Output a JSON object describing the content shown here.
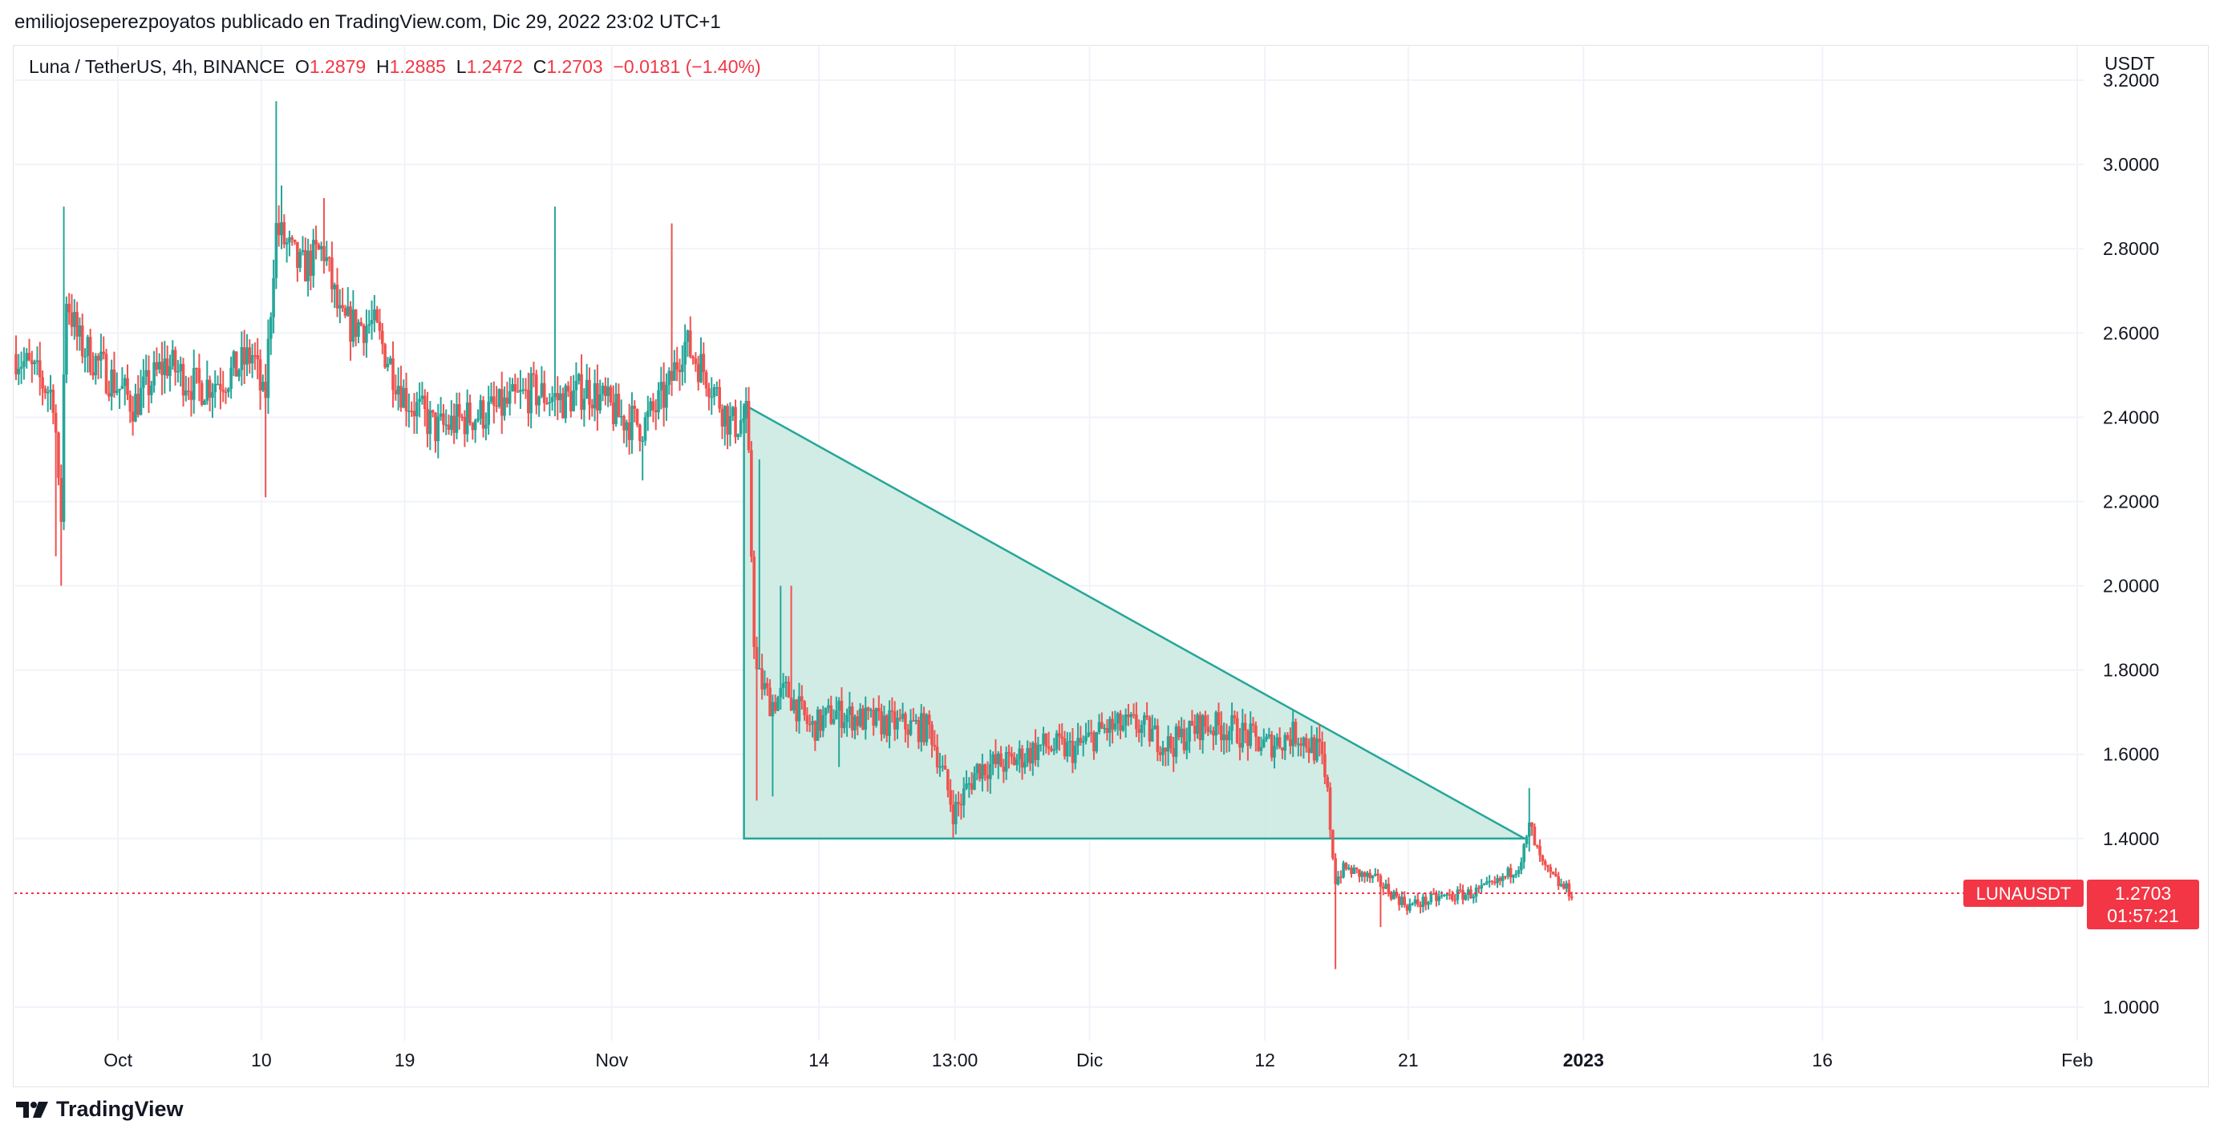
{
  "header": {
    "published_by": "emiliojoseperezpoyatos publicado en TradingView.com, Dic 29, 2022 23:02 UTC+1"
  },
  "legend": {
    "symbol": "Luna / TetherUS, 4h, BINANCE",
    "open_label": "O",
    "open": "1.2879",
    "high_label": "H",
    "high": "1.2885",
    "low_label": "L",
    "low": "1.2472",
    "close_label": "C",
    "close": "1.2703",
    "change": "−0.0181 (−1.40%)"
  },
  "axis": {
    "unit": "USDT"
  },
  "price_tag": {
    "symbol": "LUNAUSDT",
    "price": "1.2703",
    "countdown": "01:57:21"
  },
  "footer": {
    "brand": "TradingView",
    "logo_icon": "tradingview-logo-icon"
  },
  "colors": {
    "up": "#26a69a",
    "down": "#ef5350",
    "pattern_fill": "#c8e9e0",
    "pattern_line": "#26a69a",
    "last_price": "#f23645",
    "grid": "#f0f3fa"
  },
  "chart_data": {
    "type": "candlestick",
    "symbol": "LUNAUSDT",
    "interval": "4h",
    "exchange": "BINANCE",
    "ylim": [
      0.92,
      3.28
    ],
    "y_ticks": [
      "3.2000",
      "3.0000",
      "2.8000",
      "2.6000",
      "2.4000",
      "2.2000",
      "2.0000",
      "1.8000",
      "1.6000",
      "1.4000",
      "1.0000"
    ],
    "x_range_days": [
      -5.5,
      124.0
    ],
    "x_ticks": [
      {
        "label": "Oct",
        "day": 1
      },
      {
        "label": "10",
        "day": 10
      },
      {
        "label": "19",
        "day": 19
      },
      {
        "label": "Nov",
        "day": 32
      },
      {
        "label": "14",
        "day": 45
      },
      {
        "label": "13:00",
        "day": 53.54
      },
      {
        "label": "Dic",
        "day": 62
      },
      {
        "label": "12",
        "day": 73
      },
      {
        "label": "21",
        "day": 82
      },
      {
        "label": "2023",
        "day": 93
      },
      {
        "label": "16",
        "day": 108
      },
      {
        "label": "Feb",
        "day": 124
      }
    ],
    "last_price": 1.2703,
    "pattern": {
      "type": "descending-triangle",
      "vertices": [
        {
          "day": 40.3,
          "price": 2.43
        },
        {
          "day": 40.3,
          "price": 1.4
        },
        {
          "day": 89.3,
          "price": 1.4
        }
      ]
    },
    "price_path": [
      {
        "day": -5.4,
        "price": 2.55
      },
      {
        "day": -3.0,
        "price": 2.45
      },
      {
        "day": -2.6,
        "price": 2.1
      },
      {
        "day": -2.3,
        "price": 2.7
      },
      {
        "day": -1.5,
        "price": 2.58
      },
      {
        "day": 2.0,
        "price": 2.43
      },
      {
        "day": 4.0,
        "price": 2.53
      },
      {
        "day": 6.0,
        "price": 2.47
      },
      {
        "day": 8.0,
        "price": 2.5
      },
      {
        "day": 9.5,
        "price": 2.55
      },
      {
        "day": 10.2,
        "price": 2.42
      },
      {
        "day": 10.9,
        "price": 2.85
      },
      {
        "day": 12.5,
        "price": 2.75
      },
      {
        "day": 13.9,
        "price": 2.8
      },
      {
        "day": 15.0,
        "price": 2.62
      },
      {
        "day": 17.0,
        "price": 2.62
      },
      {
        "day": 19.0,
        "price": 2.45
      },
      {
        "day": 21.0,
        "price": 2.37
      },
      {
        "day": 23.0,
        "price": 2.4
      },
      {
        "day": 25.0,
        "price": 2.42
      },
      {
        "day": 27.0,
        "price": 2.46
      },
      {
        "day": 29.0,
        "price": 2.44
      },
      {
        "day": 30.5,
        "price": 2.47
      },
      {
        "day": 32.5,
        "price": 2.4
      },
      {
        "day": 34.0,
        "price": 2.38
      },
      {
        "day": 35.5,
        "price": 2.46
      },
      {
        "day": 36.5,
        "price": 2.58
      },
      {
        "day": 38.0,
        "price": 2.5
      },
      {
        "day": 39.5,
        "price": 2.38
      },
      {
        "day": 40.5,
        "price": 2.4
      },
      {
        "day": 41.0,
        "price": 1.8
      },
      {
        "day": 42.0,
        "price": 1.72
      },
      {
        "day": 43.0,
        "price": 1.75
      },
      {
        "day": 44.5,
        "price": 1.66
      },
      {
        "day": 46.0,
        "price": 1.7
      },
      {
        "day": 48.0,
        "price": 1.68
      },
      {
        "day": 50.0,
        "price": 1.67
      },
      {
        "day": 52.0,
        "price": 1.66
      },
      {
        "day": 53.5,
        "price": 1.46
      },
      {
        "day": 55.0,
        "price": 1.57
      },
      {
        "day": 57.0,
        "price": 1.58
      },
      {
        "day": 59.0,
        "price": 1.62
      },
      {
        "day": 61.0,
        "price": 1.61
      },
      {
        "day": 63.0,
        "price": 1.66
      },
      {
        "day": 65.0,
        "price": 1.67
      },
      {
        "day": 67.0,
        "price": 1.62
      },
      {
        "day": 69.0,
        "price": 1.67
      },
      {
        "day": 71.0,
        "price": 1.66
      },
      {
        "day": 73.0,
        "price": 1.62
      },
      {
        "day": 75.0,
        "price": 1.65
      },
      {
        "day": 76.5,
        "price": 1.6
      },
      {
        "day": 77.0,
        "price": 1.48
      },
      {
        "day": 77.4,
        "price": 1.3
      },
      {
        "day": 78.0,
        "price": 1.33
      },
      {
        "day": 80.0,
        "price": 1.3
      },
      {
        "day": 82.0,
        "price": 1.24
      },
      {
        "day": 84.0,
        "price": 1.26
      },
      {
        "day": 86.0,
        "price": 1.27
      },
      {
        "day": 87.5,
        "price": 1.29
      },
      {
        "day": 89.0,
        "price": 1.34
      },
      {
        "day": 89.6,
        "price": 1.42
      },
      {
        "day": 90.5,
        "price": 1.33
      },
      {
        "day": 91.5,
        "price": 1.29
      },
      {
        "day": 92.3,
        "price": 1.27
      }
    ],
    "spikes": [
      {
        "day": -2.6,
        "low": 2.0
      },
      {
        "day": -2.4,
        "high": 2.9
      },
      {
        "day": -2.9,
        "low": 2.07
      },
      {
        "day": 10.2,
        "low": 2.21
      },
      {
        "day": 11.0,
        "high": 3.15
      },
      {
        "day": 11.3,
        "high": 2.95
      },
      {
        "day": 14.0,
        "high": 2.92
      },
      {
        "day": 28.5,
        "high": 2.9
      },
      {
        "day": 34.0,
        "low": 2.25
      },
      {
        "day": 35.8,
        "high": 2.86
      },
      {
        "day": 41.1,
        "low": 1.49
      },
      {
        "day": 41.2,
        "high": 2.3
      },
      {
        "day": 42.1,
        "low": 1.5
      },
      {
        "day": 42.6,
        "high": 2.0
      },
      {
        "day": 43.2,
        "high": 2.0
      },
      {
        "day": 46.3,
        "low": 1.57
      },
      {
        "day": 53.6,
        "low": 1.41
      },
      {
        "day": 77.5,
        "low": 1.09
      },
      {
        "day": 80.2,
        "low": 1.19
      },
      {
        "day": 89.6,
        "high": 1.52
      }
    ]
  }
}
